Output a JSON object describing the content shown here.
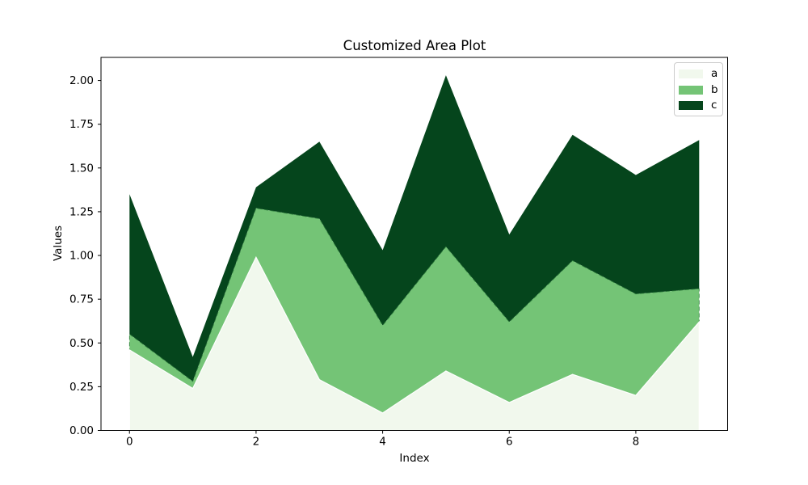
{
  "chart_data": {
    "type": "area",
    "variant": "stacked",
    "title": "Customized Area Plot",
    "xlabel": "Index",
    "ylabel": "Values",
    "x": [
      0,
      1,
      2,
      3,
      4,
      5,
      6,
      7,
      8,
      9
    ],
    "series": [
      {
        "name": "a",
        "color": "#f1f8ed",
        "edgecolor": "#ffffff",
        "edgewidth": 1.2,
        "edgedash": "none",
        "values": [
          0.46,
          0.24,
          0.99,
          0.29,
          0.1,
          0.34,
          0.16,
          0.32,
          0.2,
          0.62
        ]
      },
      {
        "name": "b",
        "color": "#74c476",
        "edgecolor": "#2f7d3c",
        "edgewidth": 0.8,
        "edgedash": "5 3",
        "values": [
          0.09,
          0.04,
          0.28,
          0.92,
          0.5,
          0.71,
          0.46,
          0.65,
          0.58,
          0.19
        ]
      },
      {
        "name": "c",
        "color": "#05451c",
        "edgecolor": "none",
        "edgewidth": 0,
        "edgedash": "none",
        "values": [
          0.8,
          0.14,
          0.12,
          0.44,
          0.43,
          0.98,
          0.5,
          0.72,
          0.68,
          0.85
        ]
      }
    ],
    "cumulative_tops": {
      "a": [
        0.46,
        0.24,
        0.99,
        0.29,
        0.1,
        0.34,
        0.16,
        0.32,
        0.2,
        0.62
      ],
      "a_plus_b": [
        0.55,
        0.28,
        1.27,
        1.21,
        0.6,
        1.05,
        0.62,
        0.97,
        0.78,
        0.81
      ],
      "total": [
        1.35,
        0.42,
        1.39,
        1.65,
        1.03,
        2.03,
        1.12,
        1.69,
        1.46,
        1.66
      ]
    },
    "xlim": [
      -0.45,
      9.45
    ],
    "ylim": [
      0,
      2.132
    ],
    "xticks": [
      0,
      2,
      4,
      6,
      8
    ],
    "xtick_labels": [
      "0",
      "2",
      "4",
      "6",
      "8"
    ],
    "yticks": [
      0,
      0.25,
      0.5,
      0.75,
      1.0,
      1.25,
      1.5,
      1.75,
      2.0
    ],
    "ytick_labels": [
      "0.00",
      "0.25",
      "0.50",
      "0.75",
      "1.00",
      "1.25",
      "1.50",
      "1.75",
      "2.00"
    ],
    "grid": false,
    "legend": {
      "position": "upper right",
      "labels": [
        "a",
        "b",
        "c"
      ]
    },
    "colors": {
      "spine": "#000000",
      "tick": "#000000",
      "text": "#000000",
      "axes_background": "#ffffff",
      "figure_background": "#ffffff",
      "legend_border": "#cccccc"
    }
  }
}
